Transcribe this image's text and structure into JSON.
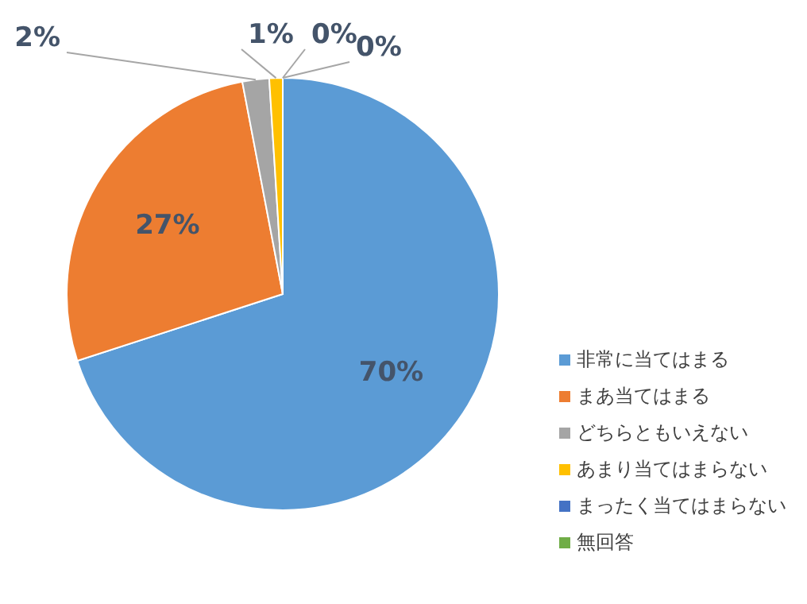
{
  "chart_data": {
    "type": "pie",
    "categories": [
      "非常に当てはまる",
      "まあ当てはまる",
      "どちらともいえない",
      "あまり当てはまらない",
      "まったく当てはまらない",
      "無回答"
    ],
    "values": [
      70,
      27,
      2,
      1,
      0,
      0
    ],
    "value_labels": [
      "70%",
      "27%",
      "2%",
      "1%",
      "0%",
      "0%"
    ],
    "colors": [
      "#5b9bd5",
      "#ed7d31",
      "#a5a5a5",
      "#ffc000",
      "#4472c4",
      "#70ad47"
    ],
    "legend": "right"
  }
}
